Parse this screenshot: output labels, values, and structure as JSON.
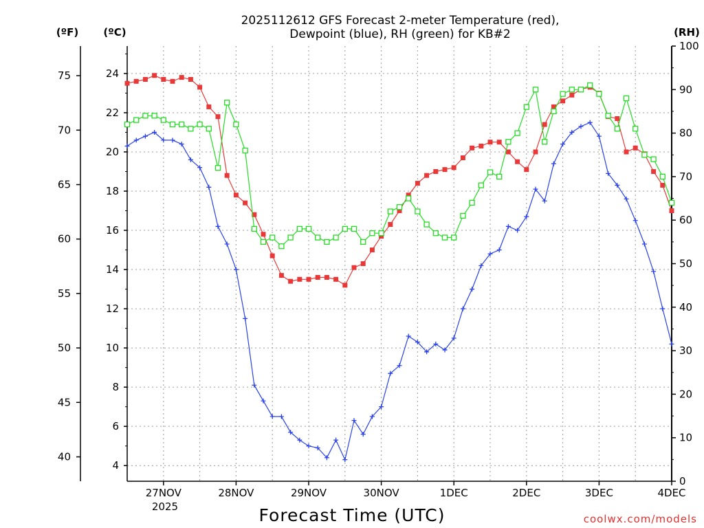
{
  "chart_data": {
    "type": "line",
    "title_lines": [
      "2025112612 GFS Forecast 2-meter Temperature (red),",
      "Dewpoint (blue), RH (green) for KB#2"
    ],
    "xlabel": "Forecast Time (UTC)",
    "credit": "coolwx.com/models",
    "x_ticks": [
      "27NOV",
      "28NOV",
      "29NOV",
      "30NOV",
      "1DEC",
      "2DEC",
      "3DEC",
      "4DEC"
    ],
    "x_year_label": "2025",
    "x_range_days": [
      -0.5,
      7.0
    ],
    "axes": {
      "fahrenheit": {
        "unit_label": "(ºF)",
        "ticks": [
          40,
          45,
          50,
          55,
          60,
          65,
          70,
          75
        ]
      },
      "celsius": {
        "unit_label": "(ºC)",
        "ticks": [
          4,
          6,
          8,
          10,
          12,
          14,
          16,
          18,
          20,
          22,
          24
        ],
        "range": [
          3.2,
          25.4
        ]
      },
      "rh": {
        "unit_label": "(RH)",
        "ticks": [
          0,
          10,
          20,
          30,
          40,
          50,
          60,
          70,
          80,
          90,
          100
        ],
        "range": [
          0,
          100
        ]
      }
    },
    "series": [
      {
        "name": "Temperature",
        "color": "#e83838",
        "marker": "filled-square",
        "axis": "celsius",
        "points": [
          [
            -0.5,
            23.5
          ],
          [
            -0.375,
            23.6
          ],
          [
            -0.25,
            23.7
          ],
          [
            -0.125,
            23.9
          ],
          [
            0.0,
            23.7
          ],
          [
            0.125,
            23.6
          ],
          [
            0.25,
            23.8
          ],
          [
            0.375,
            23.7
          ],
          [
            0.5,
            23.3
          ],
          [
            0.625,
            22.3
          ],
          [
            0.75,
            21.8
          ],
          [
            0.875,
            18.8
          ],
          [
            1.0,
            17.8
          ],
          [
            1.125,
            17.4
          ],
          [
            1.25,
            16.8
          ],
          [
            1.375,
            15.8
          ],
          [
            1.5,
            14.7
          ],
          [
            1.625,
            13.7
          ],
          [
            1.75,
            13.4
          ],
          [
            1.875,
            13.5
          ],
          [
            2.0,
            13.5
          ],
          [
            2.125,
            13.6
          ],
          [
            2.25,
            13.6
          ],
          [
            2.375,
            13.5
          ],
          [
            2.5,
            13.2
          ],
          [
            2.625,
            14.1
          ],
          [
            2.75,
            14.3
          ],
          [
            2.875,
            15.0
          ],
          [
            3.0,
            15.7
          ],
          [
            3.125,
            16.3
          ],
          [
            3.25,
            17.0
          ],
          [
            3.375,
            17.8
          ],
          [
            3.5,
            18.4
          ],
          [
            3.625,
            18.8
          ],
          [
            3.75,
            19.0
          ],
          [
            3.875,
            19.1
          ],
          [
            4.0,
            19.2
          ],
          [
            4.125,
            19.7
          ],
          [
            4.25,
            20.2
          ],
          [
            4.375,
            20.3
          ],
          [
            4.5,
            20.5
          ],
          [
            4.625,
            20.5
          ],
          [
            4.75,
            20.0
          ],
          [
            4.875,
            19.5
          ],
          [
            5.0,
            19.1
          ],
          [
            5.125,
            20.0
          ],
          [
            5.25,
            21.4
          ],
          [
            5.375,
            22.3
          ],
          [
            5.5,
            22.6
          ],
          [
            5.625,
            22.9
          ],
          [
            5.75,
            23.2
          ],
          [
            5.875,
            23.3
          ],
          [
            6.0,
            23.0
          ],
          [
            6.125,
            21.8
          ],
          [
            6.25,
            21.7
          ],
          [
            6.375,
            20.0
          ],
          [
            6.5,
            20.2
          ],
          [
            6.625,
            19.9
          ],
          [
            6.75,
            19.0
          ],
          [
            6.875,
            18.3
          ],
          [
            7.0,
            17.0
          ]
        ]
      },
      {
        "name": "Dewpoint",
        "color": "#2840e8",
        "marker": "plus",
        "axis": "celsius",
        "points": [
          [
            -0.5,
            20.3
          ],
          [
            -0.375,
            20.6
          ],
          [
            -0.25,
            20.8
          ],
          [
            -0.125,
            21.0
          ],
          [
            0.0,
            20.6
          ],
          [
            0.125,
            20.6
          ],
          [
            0.25,
            20.4
          ],
          [
            0.375,
            19.6
          ],
          [
            0.5,
            19.2
          ],
          [
            0.625,
            18.2
          ],
          [
            0.75,
            16.2
          ],
          [
            0.875,
            15.3
          ],
          [
            1.0,
            14.0
          ],
          [
            1.125,
            11.5
          ],
          [
            1.25,
            8.1
          ],
          [
            1.375,
            7.3
          ],
          [
            1.5,
            6.5
          ],
          [
            1.625,
            6.5
          ],
          [
            1.75,
            5.7
          ],
          [
            1.875,
            5.3
          ],
          [
            2.0,
            5.0
          ],
          [
            2.125,
            4.9
          ],
          [
            2.25,
            4.4
          ],
          [
            2.375,
            5.3
          ],
          [
            2.5,
            4.3
          ],
          [
            2.625,
            6.3
          ],
          [
            2.75,
            5.6
          ],
          [
            2.875,
            6.5
          ],
          [
            3.0,
            7.0
          ],
          [
            3.125,
            8.7
          ],
          [
            3.25,
            9.1
          ],
          [
            3.375,
            10.6
          ],
          [
            3.5,
            10.3
          ],
          [
            3.625,
            9.8
          ],
          [
            3.75,
            10.2
          ],
          [
            3.875,
            9.9
          ],
          [
            4.0,
            10.5
          ],
          [
            4.125,
            12.0
          ],
          [
            4.25,
            13.0
          ],
          [
            4.375,
            14.2
          ],
          [
            4.5,
            14.8
          ],
          [
            4.625,
            15.0
          ],
          [
            4.75,
            16.2
          ],
          [
            4.875,
            16.0
          ],
          [
            5.0,
            16.7
          ],
          [
            5.125,
            18.1
          ],
          [
            5.25,
            17.5
          ],
          [
            5.375,
            19.4
          ],
          [
            5.5,
            20.4
          ],
          [
            5.625,
            21.0
          ],
          [
            5.75,
            21.3
          ],
          [
            5.875,
            21.5
          ],
          [
            6.0,
            20.8
          ],
          [
            6.125,
            18.9
          ],
          [
            6.25,
            18.3
          ],
          [
            6.375,
            17.6
          ],
          [
            6.5,
            16.5
          ],
          [
            6.625,
            15.3
          ],
          [
            6.75,
            13.9
          ],
          [
            6.875,
            12.0
          ],
          [
            7.0,
            10.2
          ]
        ]
      },
      {
        "name": "RH",
        "color": "#22dd22",
        "marker": "open-square",
        "axis": "rh",
        "points": [
          [
            -0.5,
            82
          ],
          [
            -0.375,
            83
          ],
          [
            -0.25,
            84
          ],
          [
            -0.125,
            84
          ],
          [
            0.0,
            83
          ],
          [
            0.125,
            82
          ],
          [
            0.25,
            82
          ],
          [
            0.375,
            81
          ],
          [
            0.5,
            82
          ],
          [
            0.625,
            81
          ],
          [
            0.75,
            72
          ],
          [
            0.875,
            87
          ],
          [
            1.0,
            82
          ],
          [
            1.125,
            76
          ],
          [
            1.25,
            58
          ],
          [
            1.375,
            55
          ],
          [
            1.5,
            56
          ],
          [
            1.625,
            54
          ],
          [
            1.75,
            56
          ],
          [
            1.875,
            58
          ],
          [
            2.0,
            58
          ],
          [
            2.125,
            56
          ],
          [
            2.25,
            55
          ],
          [
            2.375,
            56
          ],
          [
            2.5,
            58
          ],
          [
            2.625,
            58
          ],
          [
            2.75,
            55
          ],
          [
            2.875,
            57
          ],
          [
            3.0,
            57
          ],
          [
            3.125,
            62
          ],
          [
            3.25,
            63
          ],
          [
            3.375,
            65
          ],
          [
            3.5,
            62
          ],
          [
            3.625,
            59
          ],
          [
            3.75,
            57
          ],
          [
            3.875,
            56
          ],
          [
            4.0,
            56
          ],
          [
            4.125,
            61
          ],
          [
            4.25,
            64
          ],
          [
            4.375,
            68
          ],
          [
            4.5,
            71
          ],
          [
            4.625,
            70
          ],
          [
            4.75,
            78
          ],
          [
            4.875,
            80
          ],
          [
            5.0,
            86
          ],
          [
            5.125,
            90
          ],
          [
            5.25,
            78
          ],
          [
            5.375,
            85
          ],
          [
            5.5,
            89
          ],
          [
            5.625,
            90
          ],
          [
            5.75,
            90
          ],
          [
            5.875,
            91
          ],
          [
            6.0,
            89
          ],
          [
            6.125,
            84
          ],
          [
            6.25,
            81
          ],
          [
            6.375,
            88
          ],
          [
            6.5,
            81
          ],
          [
            6.625,
            75
          ],
          [
            6.75,
            74
          ],
          [
            6.875,
            70
          ],
          [
            7.0,
            64
          ]
        ]
      }
    ]
  }
}
